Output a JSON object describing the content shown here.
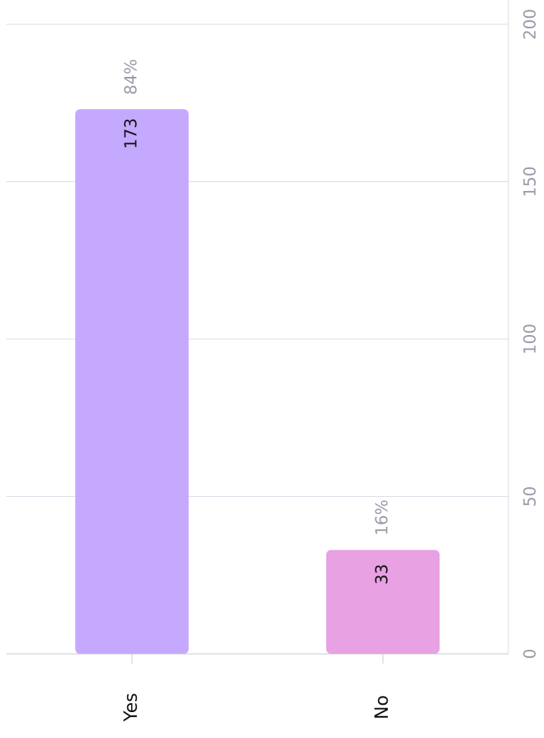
{
  "chart_data": {
    "type": "bar",
    "categories": [
      "Yes",
      "No"
    ],
    "values": [
      173,
      33
    ],
    "percentages": [
      84,
      16
    ],
    "percentage_labels": [
      "84%",
      "16%"
    ],
    "colors": [
      "#c5a9ff",
      "#e8a1e2"
    ],
    "ylim": [
      0,
      200
    ],
    "yticks": [
      0,
      50,
      100,
      150,
      200
    ],
    "grid": true
  }
}
